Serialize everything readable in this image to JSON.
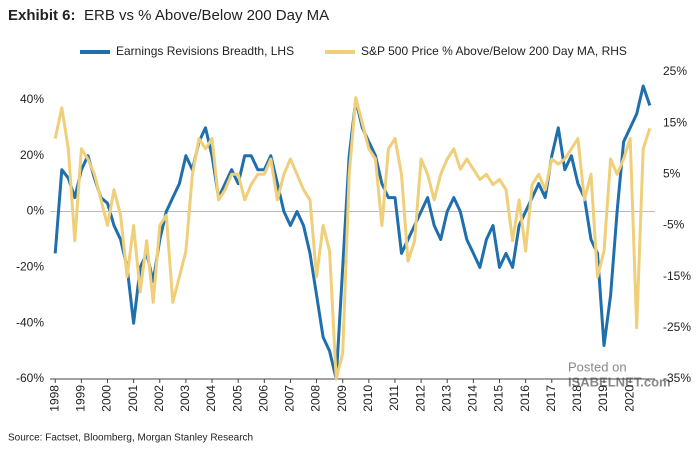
{
  "chart_data": {
    "type": "line",
    "exhibit": "Exhibit 6:",
    "title": "ERB vs % Above/Below 200 Day MA",
    "source": "Source: Factset, Bloomberg, Morgan Stanley Research",
    "watermark": [
      "Posted on",
      "ISABELNET.com"
    ],
    "x": [
      1998,
      1998.25,
      1998.5,
      1998.75,
      1999,
      1999.25,
      1999.5,
      1999.75,
      2000,
      2000.25,
      2000.5,
      2000.75,
      2001,
      2001.25,
      2001.5,
      2001.75,
      2002,
      2002.25,
      2002.5,
      2002.75,
      2003,
      2003.25,
      2003.5,
      2003.75,
      2004,
      2004.25,
      2004.5,
      2004.75,
      2005,
      2005.25,
      2005.5,
      2005.75,
      2006,
      2006.25,
      2006.5,
      2006.75,
      2007,
      2007.25,
      2007.5,
      2007.75,
      2008,
      2008.25,
      2008.5,
      2008.75,
      2009,
      2009.25,
      2009.5,
      2009.75,
      2010,
      2010.25,
      2010.5,
      2010.75,
      2011,
      2011.25,
      2011.5,
      2011.75,
      2012,
      2012.25,
      2012.5,
      2012.75,
      2013,
      2013.25,
      2013.5,
      2013.75,
      2014,
      2014.25,
      2014.5,
      2014.75,
      2015,
      2015.25,
      2015.5,
      2015.75,
      2016,
      2016.25,
      2016.5,
      2016.75,
      2017,
      2017.25,
      2017.5,
      2017.75,
      2018,
      2018.25,
      2018.5,
      2018.75,
      2019,
      2019.25,
      2019.5,
      2019.75,
      2020,
      2020.25,
      2020.5,
      2020.75
    ],
    "series": [
      {
        "name": "Earnings Revisions Breadth, LHS",
        "color": "#1f6fad",
        "axis": "y",
        "values": [
          -15,
          15,
          12,
          5,
          15,
          20,
          12,
          5,
          3,
          -5,
          -10,
          -20,
          -40,
          -20,
          -15,
          -25,
          -10,
          0,
          5,
          10,
          20,
          15,
          25,
          30,
          20,
          5,
          10,
          15,
          10,
          20,
          20,
          15,
          15,
          20,
          10,
          0,
          -5,
          0,
          -5,
          -15,
          -30,
          -45,
          -50,
          -60,
          -20,
          20,
          40,
          30,
          25,
          20,
          10,
          5,
          5,
          -15,
          -10,
          -5,
          0,
          5,
          -5,
          -10,
          0,
          5,
          0,
          -10,
          -15,
          -20,
          -10,
          -5,
          -20,
          -15,
          -20,
          -5,
          0,
          5,
          10,
          5,
          20,
          30,
          15,
          20,
          10,
          5,
          -10,
          -15,
          -48,
          -30,
          0,
          25,
          30,
          35,
          45,
          38
        ]
      },
      {
        "name": "S&P 500 Price % Above/Below 200 Day MA, RHS",
        "color": "#f0cf7a",
        "axis": "y2",
        "values": [
          12,
          18,
          10,
          -8,
          10,
          8,
          5,
          0,
          -5,
          2,
          -3,
          -15,
          -5,
          -18,
          -8,
          -20,
          -5,
          -3,
          -20,
          -15,
          -10,
          5,
          12,
          10,
          12,
          0,
          2,
          5,
          5,
          0,
          3,
          5,
          5,
          8,
          0,
          5,
          8,
          5,
          2,
          0,
          -15,
          -5,
          -10,
          -35,
          -30,
          5,
          20,
          15,
          10,
          8,
          -5,
          10,
          12,
          5,
          -12,
          -8,
          8,
          5,
          0,
          5,
          8,
          10,
          6,
          8,
          6,
          4,
          5,
          3,
          4,
          2,
          -8,
          0,
          -10,
          3,
          5,
          2,
          8,
          7,
          8,
          10,
          12,
          0,
          5,
          -15,
          -10,
          8,
          5,
          8,
          12,
          -25,
          10,
          14
        ]
      }
    ],
    "xlim": [
      1997.8,
      2020.95
    ],
    "xticks": [
      1998,
      1999,
      2000,
      2001,
      2002,
      2003,
      2004,
      2005,
      2006,
      2007,
      2008,
      2009,
      2010,
      2011,
      2012,
      2013,
      2014,
      2015,
      2016,
      2017,
      2018,
      2019,
      2020
    ],
    "ylim": [
      -60,
      50
    ],
    "yticks": [
      {
        "value": -60,
        "label": "-60%"
      },
      {
        "value": -40,
        "label": "-40%"
      },
      {
        "value": -20,
        "label": "-20%"
      },
      {
        "value": 0,
        "label": "0%"
      },
      {
        "value": 20,
        "label": "20%"
      },
      {
        "value": 40,
        "label": "40%"
      }
    ],
    "y2lim": [
      -35,
      25
    ],
    "y2ticks": [
      {
        "value": -35,
        "label": "-35%"
      },
      {
        "value": -25,
        "label": "-25%"
      },
      {
        "value": -15,
        "label": "-15%"
      },
      {
        "value": -5,
        "label": "-5%"
      },
      {
        "value": 5,
        "label": "5%"
      },
      {
        "value": 15,
        "label": "15%"
      },
      {
        "value": 25,
        "label": "25%"
      }
    ]
  }
}
